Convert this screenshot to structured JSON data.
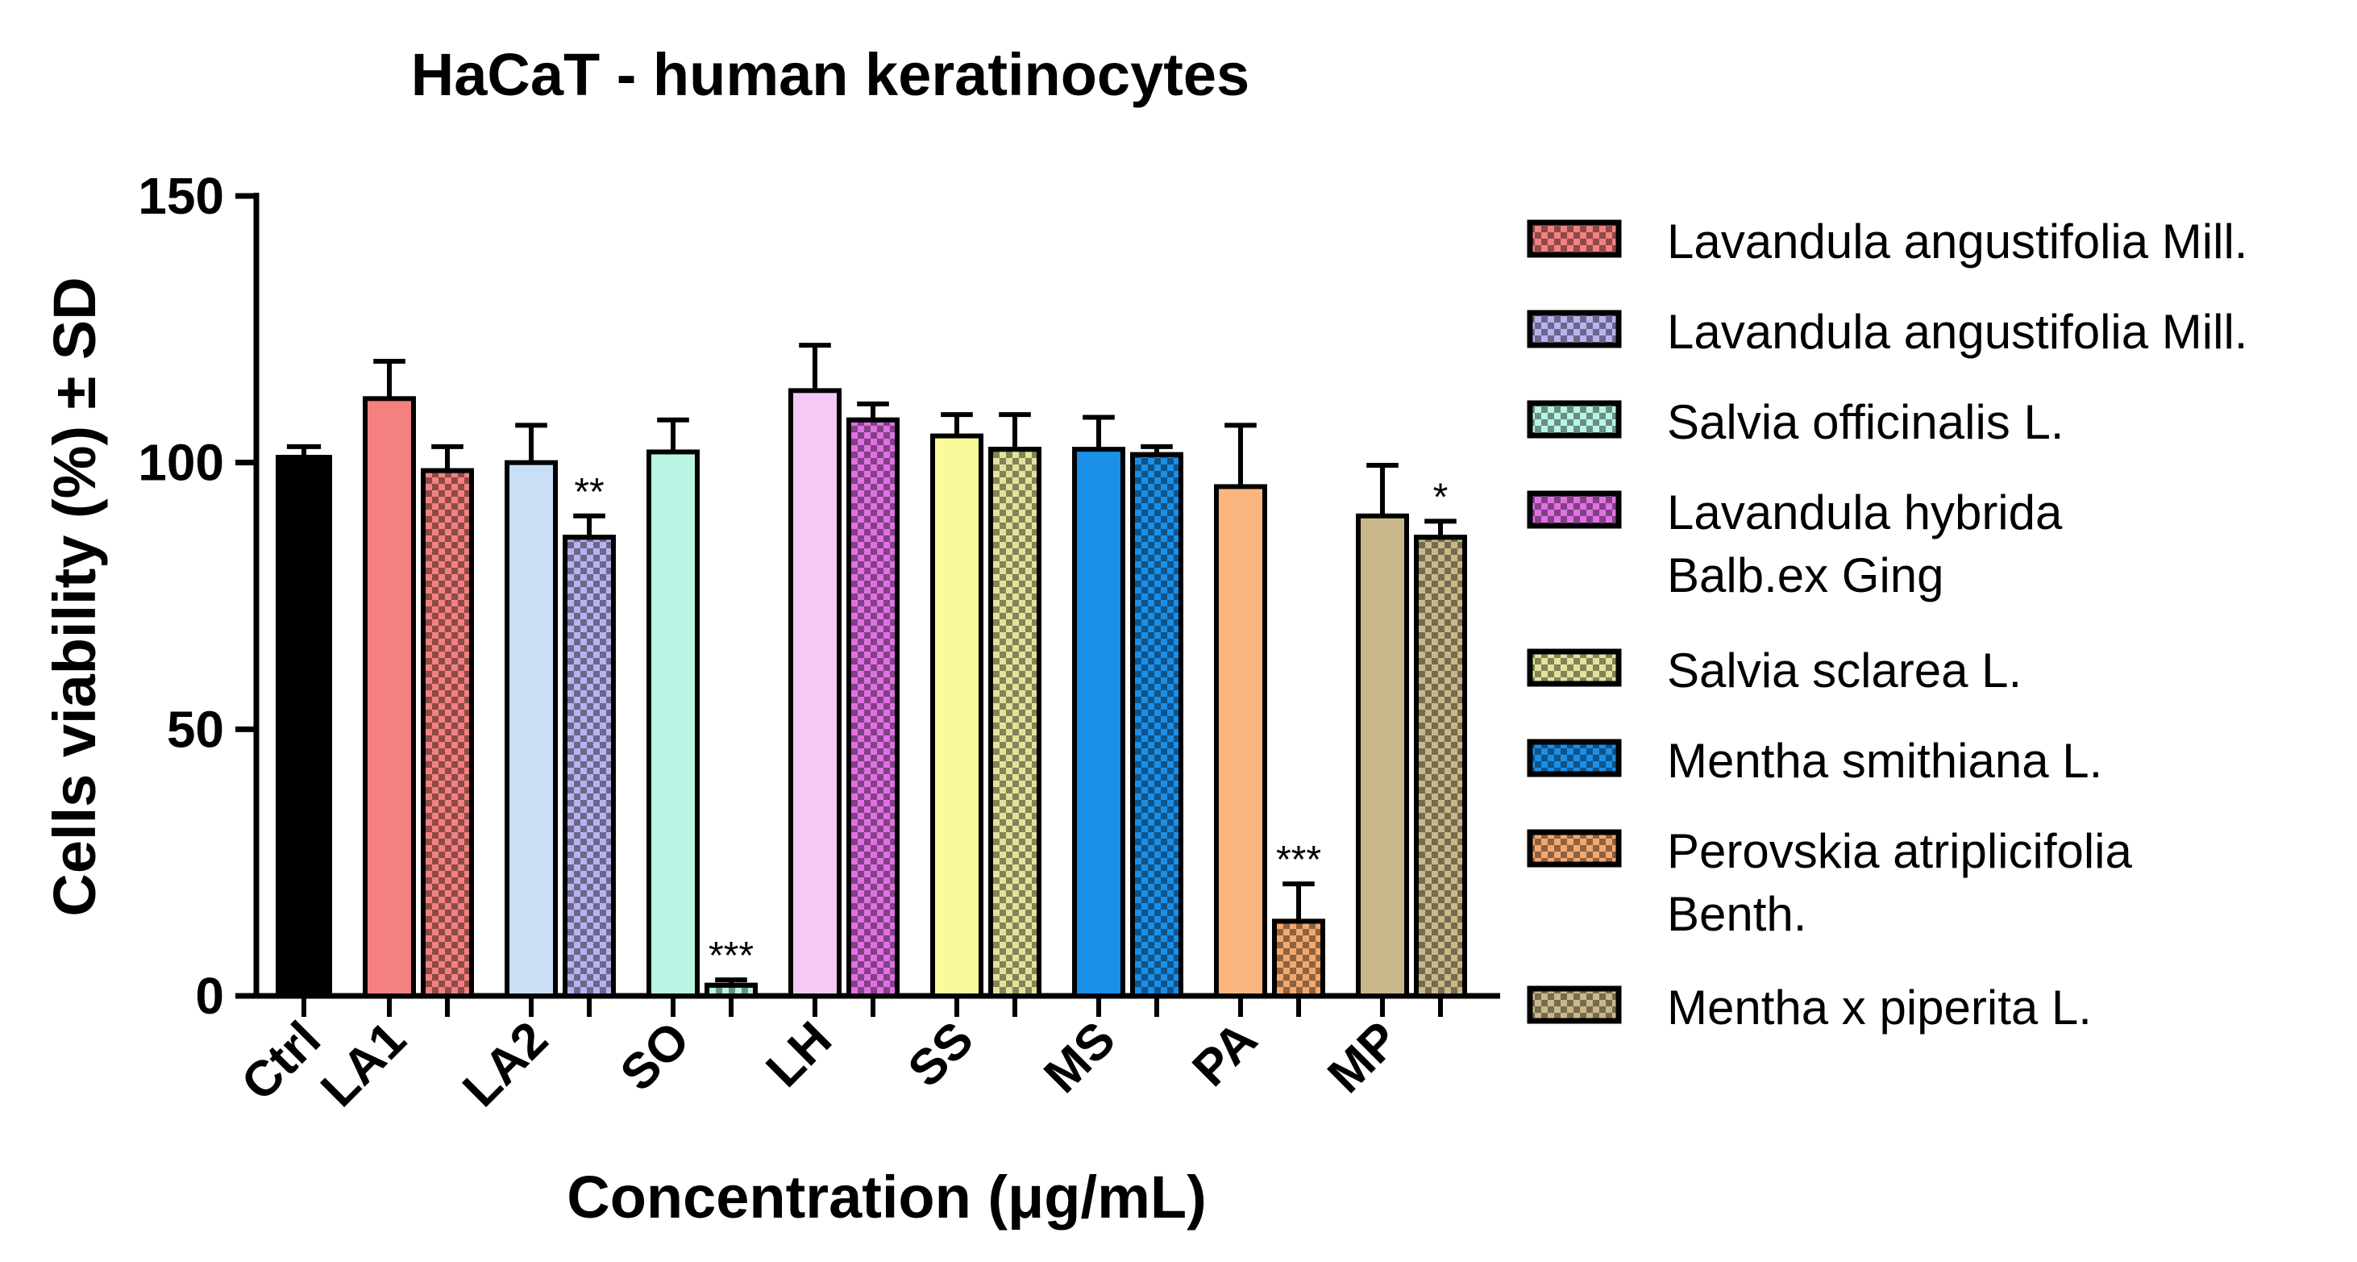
{
  "chart_data": {
    "type": "bar",
    "title": "HaCaT - human keratinocytes",
    "xlabel": "Concentration (μg/mL)",
    "ylabel": "Cells viability (%) ± SD",
    "ylim": [
      0,
      150
    ],
    "yticks": [
      "0",
      "50",
      "100",
      "150"
    ],
    "categories": [
      "Ctrl",
      "LA1",
      "LA2",
      "SO",
      "LH",
      "SS",
      "MS",
      "PA",
      "MP"
    ],
    "bars": [
      {
        "group": 0,
        "variant": "solid",
        "color": "#000000",
        "value": 101,
        "sd": 2,
        "sig": ""
      },
      {
        "group": 1,
        "variant": "solid",
        "color": "#f48080",
        "value": 112,
        "sd": 7,
        "sig": ""
      },
      {
        "group": 1,
        "variant": "checkered",
        "color": "#f48080",
        "value": 98.5,
        "sd": 4.5,
        "sig": ""
      },
      {
        "group": 2,
        "variant": "solid",
        "color": "#c8dff5",
        "value": 100,
        "sd": 7,
        "sig": ""
      },
      {
        "group": 2,
        "variant": "checkered",
        "color": "#b7b3ee",
        "value": 86,
        "sd": 4,
        "sig": "**"
      },
      {
        "group": 3,
        "variant": "solid",
        "color": "#b8f5e4",
        "value": 102,
        "sd": 6,
        "sig": ""
      },
      {
        "group": 3,
        "variant": "checkered",
        "color": "#b8f5e4",
        "value": 2,
        "sd": 1,
        "sig": "***"
      },
      {
        "group": 4,
        "variant": "solid",
        "color": "#f6c8f6",
        "value": 113.5,
        "sd": 8.5,
        "sig": ""
      },
      {
        "group": 4,
        "variant": "checkered",
        "color": "#e070e4",
        "value": 108,
        "sd": 3,
        "sig": ""
      },
      {
        "group": 5,
        "variant": "solid",
        "color": "#fafa9a",
        "value": 105,
        "sd": 4,
        "sig": ""
      },
      {
        "group": 5,
        "variant": "checkered",
        "color": "#e2e29a",
        "value": 102.5,
        "sd": 6.5,
        "sig": ""
      },
      {
        "group": 6,
        "variant": "solid",
        "color": "#1a8fe8",
        "value": 102.5,
        "sd": 6,
        "sig": ""
      },
      {
        "group": 6,
        "variant": "checkered",
        "color": "#1a8fe8",
        "value": 101.5,
        "sd": 1.5,
        "sig": ""
      },
      {
        "group": 7,
        "variant": "solid",
        "color": "#fbb680",
        "value": 95.5,
        "sd": 11.5,
        "sig": ""
      },
      {
        "group": 7,
        "variant": "checkered",
        "color": "#f4a86e",
        "value": 14,
        "sd": 7,
        "sig": "***"
      },
      {
        "group": 8,
        "variant": "solid",
        "color": "#c9b98a",
        "value": 90,
        "sd": 9.5,
        "sig": ""
      },
      {
        "group": 8,
        "variant": "checkered",
        "color": "#c9b98a",
        "value": 86,
        "sd": 3,
        "sig": "*"
      }
    ],
    "legend": [
      {
        "lines": [
          "Lavandula angustifolia Mill."
        ],
        "color": "#f48080"
      },
      {
        "lines": [
          "Lavandula angustifolia Mill."
        ],
        "color": "#b7b3ee"
      },
      {
        "lines": [
          "Salvia officinalis L."
        ],
        "color": "#b8f5e4"
      },
      {
        "lines": [
          "Lavandula hybrida",
          "Balb.ex Ging"
        ],
        "color": "#e070e4"
      },
      {
        "lines": [
          "Salvia sclarea L."
        ],
        "color": "#e2e29a"
      },
      {
        "lines": [
          "Mentha smithiana L."
        ],
        "color": "#1a8fe8"
      },
      {
        "lines": [
          "Perovskia atriplicifolia",
          "Benth."
        ],
        "color": "#f4a86e"
      },
      {
        "lines": [
          "Mentha x piperita L."
        ],
        "color": "#c9b98a"
      }
    ],
    "legend_position": "right",
    "grid": false
  }
}
